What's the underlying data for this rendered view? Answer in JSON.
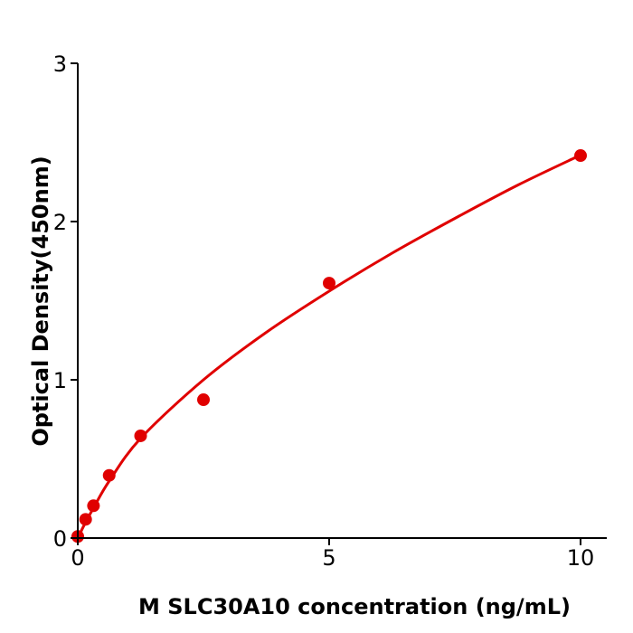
{
  "chart_data": {
    "type": "scatter",
    "xlabel": "M  SLC30A10 concentration (ng/mL)",
    "ylabel": "Optical Density(450nm)",
    "xlim": [
      0,
      10.5
    ],
    "ylim": [
      0,
      3
    ],
    "xticks": [
      "0",
      "5",
      "10"
    ],
    "yticks": [
      "0",
      "1",
      "2",
      "3"
    ],
    "grid": false,
    "color": "#e00000",
    "points": {
      "x": [
        0,
        0.156,
        0.3125,
        0.625,
        1.25,
        2.5,
        5,
        10
      ],
      "y": [
        0.01,
        0.118,
        0.204,
        0.396,
        0.646,
        0.874,
        1.611,
        2.417
      ]
    },
    "fit_curve": {
      "x": [
        0,
        0.156,
        0.3125,
        0.625,
        1.25,
        2.5,
        3.75,
        5,
        6.25,
        7.5,
        8.75,
        10
      ],
      "y": [
        0,
        0.1,
        0.19,
        0.36,
        0.63,
        1.0,
        1.3,
        1.56,
        1.8,
        2.02,
        2.23,
        2.42
      ]
    }
  }
}
